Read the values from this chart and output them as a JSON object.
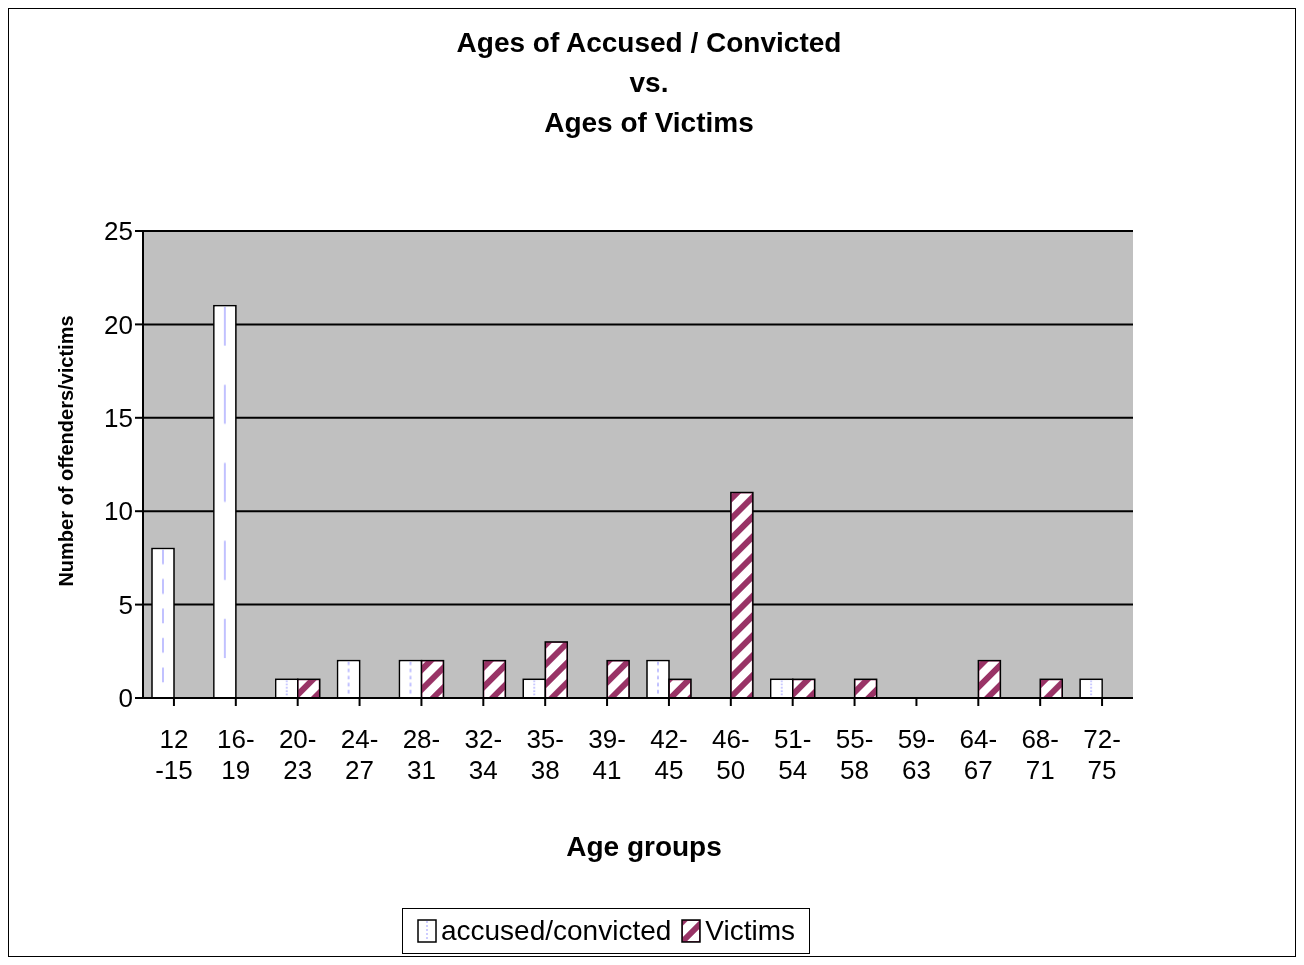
{
  "chart_data": {
    "type": "bar",
    "title": "Ages of Accused / Convicted\nvs.\nAges of Victims",
    "xlabel": "Age groups",
    "ylabel": "Number of offenders/victims",
    "categories": [
      "12 -15",
      "16-19",
      "20-23",
      "24-27",
      "28-31",
      "32-34",
      "35-38",
      "39-41",
      "42-45",
      "46-50",
      "51-54",
      "55-58",
      "59-63",
      "64-67",
      "68-71",
      "72-75"
    ],
    "series": [
      {
        "name": "accused/convicted",
        "color": "#ffffff",
        "values": [
          8,
          21,
          1,
          2,
          2,
          0,
          1,
          0,
          2,
          0,
          1,
          0,
          0,
          0,
          0,
          1
        ]
      },
      {
        "name": "Victims",
        "color": "#993366",
        "values": [
          0,
          0,
          1,
          0,
          2,
          2,
          3,
          2,
          1,
          11,
          1,
          1,
          0,
          2,
          1,
          0
        ]
      }
    ],
    "ylim": [
      0,
      25
    ],
    "yticks": [
      0,
      5,
      10,
      15,
      20,
      25
    ],
    "grid": "y",
    "legend": "bottom"
  }
}
